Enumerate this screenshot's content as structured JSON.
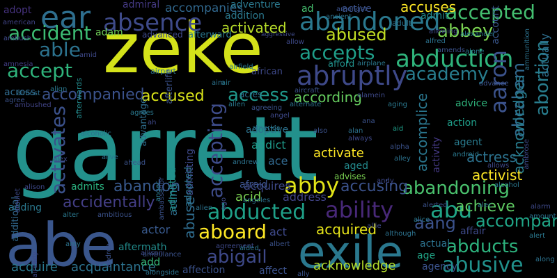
{
  "words": [
    {
      "text": "garrett",
      "color": "#23918c"
    },
    {
      "text": "zeke",
      "color": "#d4e21a"
    },
    {
      "text": "abe",
      "color": "#3a568c"
    },
    {
      "text": "exile",
      "color": "#2a788e"
    },
    {
      "text": "ear",
      "color": "#2e6e8e"
    },
    {
      "text": "absence",
      "color": "#3e4a89"
    },
    {
      "text": "abandoned",
      "color": "#2a788e"
    },
    {
      "text": "accepted",
      "color": "#44bf70"
    },
    {
      "text": "abduction",
      "color": "#2fb47c"
    },
    {
      "text": "activates",
      "color": "#3b518b"
    },
    {
      "text": "accident",
      "color": "#3dbc74"
    },
    {
      "text": "abbey",
      "color": "#7ad151"
    },
    {
      "text": "abused",
      "color": "#c2df23"
    },
    {
      "text": "accept",
      "color": "#2fb47c"
    },
    {
      "text": "abruptly",
      "color": "#3e4989"
    },
    {
      "text": "accepts",
      "color": "#1f9e89"
    },
    {
      "text": "able",
      "color": "#2c728e"
    },
    {
      "text": "academy",
      "color": "#287d8e"
    },
    {
      "text": "aaron",
      "color": "#3b528b"
    },
    {
      "text": "abraham",
      "color": "#31688e"
    },
    {
      "text": "abortion",
      "color": "#287d8e"
    },
    {
      "text": "accompanied",
      "color": "#3b528b"
    },
    {
      "text": "accepting",
      "color": "#3e4c8a"
    },
    {
      "text": "access",
      "color": "#1f988b"
    },
    {
      "text": "according",
      "color": "#65cb5e"
    },
    {
      "text": "accused",
      "color": "#d8e219"
    },
    {
      "text": "abby",
      "color": "#e2e418"
    },
    {
      "text": "abandoning",
      "color": "#4ac16d"
    },
    {
      "text": "abducted",
      "color": "#1fa088"
    },
    {
      "text": "ability",
      "color": "#482878"
    },
    {
      "text": "abu",
      "color": "#20a486"
    },
    {
      "text": "aboard",
      "color": "#fde725"
    },
    {
      "text": "abigail",
      "color": "#3e4989"
    },
    {
      "text": "abducts",
      "color": "#2db27d"
    },
    {
      "text": "abusive",
      "color": "#21918c"
    },
    {
      "text": "accompany",
      "color": "#20a486"
    },
    {
      "text": "aang",
      "color": "#3b528b"
    },
    {
      "text": "accidentally",
      "color": "#433e85"
    },
    {
      "text": "abandon",
      "color": "#38598c"
    },
    {
      "text": "abuse",
      "color": "#2f6c8e"
    },
    {
      "text": "achieve",
      "color": "#5ec962"
    },
    {
      "text": "acquire",
      "color": "#2a788e"
    },
    {
      "text": "acquaintance",
      "color": "#2c728e"
    },
    {
      "text": "acknowledge",
      "color": "#b5de2b"
    },
    {
      "text": "activate",
      "color": "#fde725"
    },
    {
      "text": "accusing",
      "color": "#3b528b"
    },
    {
      "text": "acquired",
      "color": "#e5e419"
    },
    {
      "text": "actress",
      "color": "#2c728e"
    },
    {
      "text": "activist",
      "color": "#fde725"
    },
    {
      "text": "accomplice",
      "color": "#2a768e"
    },
    {
      "text": "acknowledges",
      "color": "#287c8e"
    },
    {
      "text": "actually",
      "color": "#2e6f8e"
    },
    {
      "text": "accompanies",
      "color": "#31688e"
    },
    {
      "text": "accuses",
      "color": "#fde725"
    },
    {
      "text": "activated",
      "color": "#b8de29"
    },
    {
      "text": "account",
      "color": "#39568c"
    },
    {
      "text": "actor",
      "color": "#38598c"
    },
    {
      "text": "action",
      "color": "#1f9e89"
    },
    {
      "text": "actual",
      "color": "#2c728e"
    },
    {
      "text": "acres",
      "color": "#2e6e8e"
    },
    {
      "text": "acid",
      "color": "#7ad151"
    },
    {
      "text": "address",
      "color": "#414487"
    },
    {
      "text": "acquires",
      "color": "#3e4a89"
    },
    {
      "text": "ace",
      "color": "#31688e"
    },
    {
      "text": "addict",
      "color": "#1f9a8a"
    },
    {
      "text": "admits",
      "color": "#2ab07f"
    },
    {
      "text": "act",
      "color": "#3e4989"
    },
    {
      "text": "adam",
      "color": "#6ece58"
    },
    {
      "text": "adopt",
      "color": "#46337f"
    },
    {
      "text": "admiral",
      "color": "#443983"
    },
    {
      "text": "adventure",
      "color": "#2a788e"
    },
    {
      "text": "ad",
      "color": "#46c06f"
    },
    {
      "text": "active",
      "color": "#3b528b"
    },
    {
      "text": "admit",
      "color": "#238a8d"
    },
    {
      "text": "addition",
      "color": "#2a788e"
    },
    {
      "text": "adult",
      "color": "#2c728e"
    },
    {
      "text": "advanced",
      "color": "#3e4989"
    },
    {
      "text": "afterward",
      "color": "#2a788e"
    },
    {
      "text": "afford",
      "color": "#21918c"
    },
    {
      "text": "african",
      "color": "#3e4989"
    },
    {
      "text": "aftermath",
      "color": "#228c8d"
    },
    {
      "text": "add",
      "color": "#35b779"
    },
    {
      "text": "affection",
      "color": "#3b528b"
    },
    {
      "text": "affect",
      "color": "#3b518b"
    },
    {
      "text": "age",
      "color": "#20a486"
    },
    {
      "text": "agency",
      "color": "#3b528b"
    },
    {
      "text": "affair",
      "color": "#3e4a89"
    },
    {
      "text": "aged",
      "color": "#238a8d"
    },
    {
      "text": "agent",
      "color": "#297b8e"
    },
    {
      "text": "activity",
      "color": "#443983"
    },
    {
      "text": "afraid",
      "color": "#3b528b"
    },
    {
      "text": "advises",
      "color": "#7ad151"
    },
    {
      "text": "adoptive",
      "color": "#2c728e"
    },
    {
      "text": "acting",
      "color": "#2e6e8e"
    },
    {
      "text": "adding",
      "color": "#2a788e"
    },
    {
      "text": "admitted",
      "color": "#21918c"
    },
    {
      "text": "advice",
      "color": "#2fb47c"
    },
    {
      "text": "admitting",
      "color": "#3e4989"
    },
    {
      "text": "adopted",
      "color": "#2c728e"
    },
    {
      "text": "additional",
      "color": "#31688e"
    },
    {
      "text": "across",
      "color": "#306a8e"
    },
    {
      "text": "advantage",
      "color": "#2e6e8e"
    },
    {
      "text": "afterlife",
      "color": "#3b528b"
    },
    {
      "text": "airport",
      "color": "#2c728e"
    },
    {
      "text": "afterwards",
      "color": "#238a8d"
    },
    {
      "text": "aggressive",
      "color": "#3e4a89"
    },
    {
      "text": "allison",
      "color": "#3e4989"
    },
    {
      "text": "american",
      "color": "#414487"
    },
    {
      "text": "ambush",
      "color": "#3e4989"
    },
    {
      "text": "amnesia",
      "color": "#433e85"
    },
    {
      "text": "almost",
      "color": "#2e6e8e"
    },
    {
      "text": "align",
      "color": "#2a788e"
    },
    {
      "text": "agree",
      "color": "#3b528b"
    },
    {
      "text": "ambushed",
      "color": "#414487"
    },
    {
      "text": "alcoholic",
      "color": "#2c728e"
    },
    {
      "text": "agrees",
      "color": "#2a788e"
    },
    {
      "text": "ah",
      "color": "#3e4989"
    },
    {
      "text": "allen",
      "color": "#2a788e"
    },
    {
      "text": "agreeing",
      "color": "#3b528b"
    },
    {
      "text": "alternate",
      "color": "#2c728e"
    },
    {
      "text": "angel",
      "color": "#3e4989"
    },
    {
      "text": "america",
      "color": "#2a788e"
    },
    {
      "text": "also",
      "color": "#3b528b"
    },
    {
      "text": "alan",
      "color": "#2c728e"
    },
    {
      "text": "always",
      "color": "#3e4989"
    },
    {
      "text": "aid",
      "color": "#1f9e89"
    },
    {
      "text": "alpha",
      "color": "#3b528b"
    },
    {
      "text": "alley",
      "color": "#2c728e"
    },
    {
      "text": "android",
      "color": "#2a788e"
    },
    {
      "text": "allows",
      "color": "#3e4989"
    },
    {
      "text": "alex",
      "color": "#3e4989"
    },
    {
      "text": "alive",
      "color": "#2c728e"
    },
    {
      "text": "ahead",
      "color": "#3b528b"
    },
    {
      "text": "alison",
      "color": "#3e4989"
    },
    {
      "text": "alien",
      "color": "#2c728e"
    },
    {
      "text": "alter",
      "color": "#2a788e"
    },
    {
      "text": "ambitious",
      "color": "#3b528b"
    },
    {
      "text": "amy",
      "color": "#2c728e"
    },
    {
      "text": "already",
      "color": "#3e4989"
    },
    {
      "text": "ambulance",
      "color": "#3b528b"
    },
    {
      "text": "alongside",
      "color": "#2c728e"
    },
    {
      "text": "agreement",
      "color": "#3e4989"
    },
    {
      "text": "aided",
      "color": "#2a788e"
    },
    {
      "text": "albert",
      "color": "#3b528b"
    },
    {
      "text": "allie",
      "color": "#3e4989"
    },
    {
      "text": "although",
      "color": "#2c728e"
    },
    {
      "text": "alice",
      "color": "#2a788e"
    },
    {
      "text": "alerted",
      "color": "#3b528b"
    },
    {
      "text": "amount",
      "color": "#2c728e"
    },
    {
      "text": "alarm",
      "color": "#3e4989"
    },
    {
      "text": "alert",
      "color": "#2a788e"
    },
    {
      "text": "ally",
      "color": "#3b528b"
    },
    {
      "text": "along",
      "color": "#2c728e"
    },
    {
      "text": "amid",
      "color": "#3e4989"
    },
    {
      "text": "alone",
      "color": "#2a788e"
    },
    {
      "text": "amends",
      "color": "#3b528b"
    },
    {
      "text": "alfred",
      "color": "#2c728e"
    },
    {
      "text": "allowing",
      "color": "#3e4989"
    },
    {
      "text": "alexander",
      "color": "#2a788e"
    },
    {
      "text": "amongst",
      "color": "#3b528b"
    },
    {
      "text": "ancient",
      "color": "#2c728e"
    },
    {
      "text": "allow",
      "color": "#3e4989"
    },
    {
      "text": "airplane",
      "color": "#2a788e"
    },
    {
      "text": "aircraft",
      "color": "#3b528b"
    },
    {
      "text": "aim",
      "color": "#2c728e"
    },
    {
      "text": "alamein",
      "color": "#3e4989"
    },
    {
      "text": "aging",
      "color": "#2a788e"
    },
    {
      "text": "ana",
      "color": "#3b528b"
    },
    {
      "text": "andrew",
      "color": "#2c728e"
    },
    {
      "text": "andy",
      "color": "#3e4989"
    },
    {
      "text": "alcohol",
      "color": "#2a788e"
    },
    {
      "text": "ambassador",
      "color": "#3b528b"
    },
    {
      "text": "angeles",
      "color": "#2c728e"
    },
    {
      "text": "amulet",
      "color": "#3e4989"
    },
    {
      "text": "anger",
      "color": "#2a788e"
    },
    {
      "text": "andrea",
      "color": "#3b528b"
    },
    {
      "text": "ammunition",
      "color": "#2c728e"
    },
    {
      "text": "ambrose",
      "color": "#3e4989"
    },
    {
      "text": "airfield",
      "color": "#2a788e"
    },
    {
      "text": "advance",
      "color": "#3b528b"
    },
    {
      "text": "alec",
      "color": "#2c728e"
    },
    {
      "text": "ago",
      "color": "#3e4989"
    },
    {
      "text": "air",
      "color": "#2a788e"
    },
    {
      "text": "allowed",
      "color": "#3b528b"
    },
    {
      "text": "andie",
      "color": "#2c728e"
    },
    {
      "text": "ai",
      "color": "#3e4989"
    }
  ]
}
